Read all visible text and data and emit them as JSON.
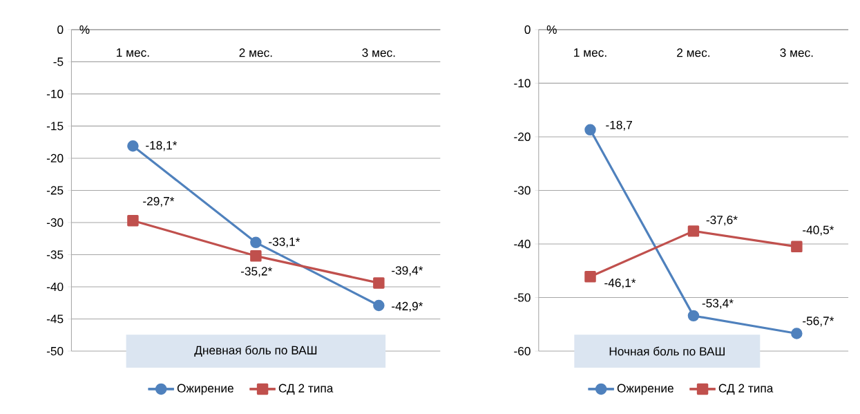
{
  "chart_data": [
    {
      "type": "line",
      "ylabel": "%",
      "categories": [
        "1 мес.",
        "2 мес.",
        "3 мес."
      ],
      "ylim": [
        -50,
        0
      ],
      "yticks": [
        0,
        -5,
        -10,
        -15,
        -20,
        -25,
        -30,
        -35,
        -40,
        -45,
        -50
      ],
      "grid": "y",
      "legend": "bottom",
      "annotations": [
        "Дневная боль по ВАШ"
      ],
      "series": [
        {
          "name": "Ожирение",
          "color": "#4f81bd",
          "marker": "circle",
          "values": [
            -18.1,
            -33.1,
            -42.9
          ],
          "value_labels": [
            "-18,1*",
            "-33,1*",
            "-42,9*"
          ]
        },
        {
          "name": "СД 2 типа",
          "color": "#c0504d",
          "marker": "square",
          "values": [
            -29.7,
            -35.2,
            -39.4
          ],
          "value_labels": [
            "-29,7*",
            "-35,2*",
            "-39,4*"
          ]
        }
      ]
    },
    {
      "type": "line",
      "ylabel": "%",
      "categories": [
        "1 мес.",
        "2 мес.",
        "3 мес."
      ],
      "ylim": [
        -60,
        0
      ],
      "yticks": [
        0,
        -10,
        -20,
        -30,
        -40,
        -50,
        -60
      ],
      "grid": "y",
      "legend": "bottom",
      "annotations": [
        "Ночная боль по ВАШ"
      ],
      "series": [
        {
          "name": "Ожирение",
          "color": "#4f81bd",
          "marker": "circle",
          "values": [
            -18.7,
            -53.4,
            -56.7
          ],
          "value_labels": [
            "-18,7",
            "-53,4*",
            "-56,7*"
          ]
        },
        {
          "name": "СД 2 типа",
          "color": "#c0504d",
          "marker": "square",
          "values": [
            -46.1,
            -37.6,
            -40.5
          ],
          "value_labels": [
            "-46,1*",
            "-37,6*",
            "-40,5*"
          ]
        }
      ]
    }
  ]
}
